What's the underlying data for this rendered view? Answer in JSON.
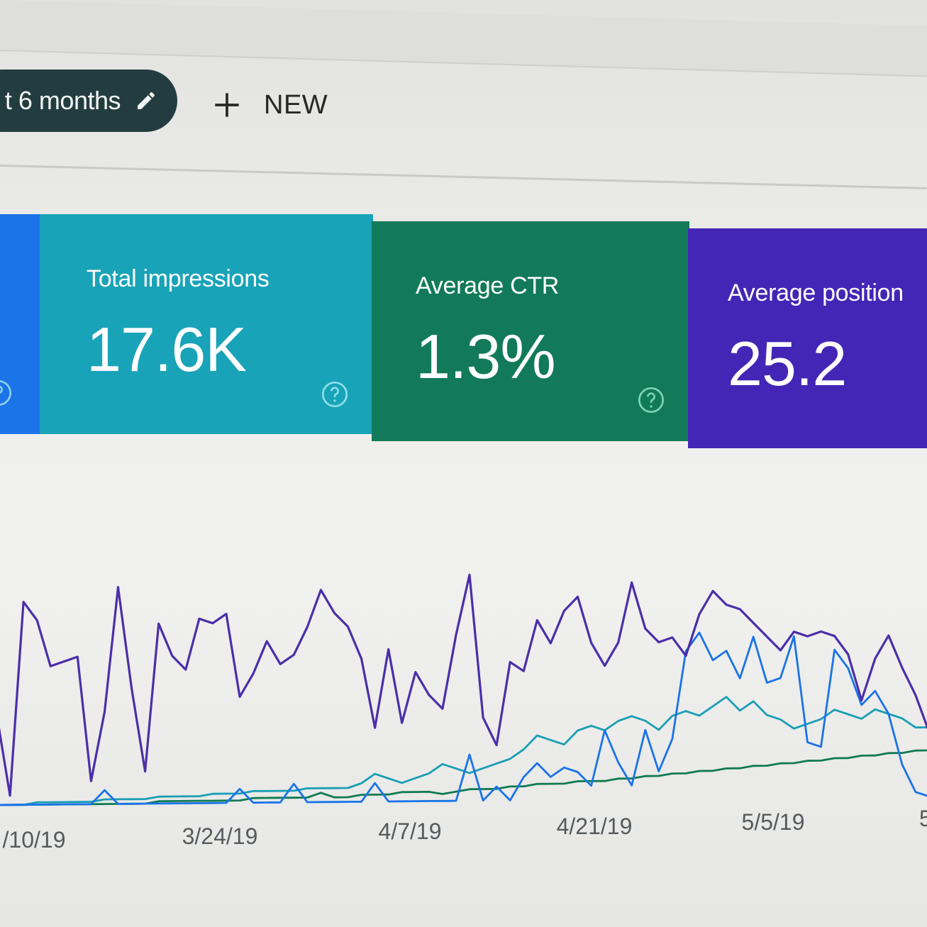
{
  "toolbar": {
    "date_range_label": "t 6 months",
    "new_label": "NEW"
  },
  "metrics": {
    "impressions": {
      "label": "Total impressions",
      "value": "17.6K"
    },
    "ctr": {
      "label": "Average CTR",
      "value": "1.3%"
    },
    "position": {
      "label": "Average position",
      "value": "25.2"
    }
  },
  "icons": {
    "edit": "pencil-icon",
    "add": "plus-icon",
    "help": "help-circle-icon"
  },
  "colors": {
    "clicks": "#1b74e8",
    "impressions": "#19a3b8",
    "ctr": "#127a58",
    "position": "#4326b6"
  },
  "chart_data": {
    "type": "line",
    "x_tick_labels": [
      "/10/19",
      "3/24/19",
      "4/7/19",
      "4/21/19",
      "5/5/19",
      "5"
    ],
    "series": [
      {
        "color": "#4a2fa8",
        "values": [
          40,
          4,
          88,
          80,
          60,
          62,
          64,
          10,
          40,
          94,
          50,
          14,
          78,
          64,
          58,
          80,
          78,
          82,
          46,
          56,
          70,
          60,
          64,
          76,
          92,
          82,
          76,
          62,
          32,
          66,
          34,
          56,
          46,
          40,
          72,
          98,
          36,
          24,
          60,
          56,
          78,
          68,
          82,
          88,
          68,
          58,
          68,
          94,
          74,
          68,
          70,
          62,
          80,
          90,
          84,
          82,
          76,
          70,
          64,
          72,
          70,
          72,
          70,
          62,
          42,
          60,
          70,
          56,
          44,
          28
        ]
      },
      {
        "color": "#1a73e8",
        "values": [
          0,
          0,
          0,
          0,
          0,
          0,
          0,
          0,
          6,
          0,
          0,
          0,
          0,
          0,
          0,
          0,
          0,
          0,
          6,
          0,
          0,
          0,
          8,
          0,
          0,
          0,
          0,
          0,
          8,
          0,
          0,
          0,
          0,
          0,
          0,
          20,
          0,
          6,
          0,
          10,
          16,
          10,
          14,
          12,
          6,
          30,
          16,
          6,
          30,
          12,
          26,
          64,
          72,
          60,
          64,
          52,
          70,
          50,
          52,
          70,
          24,
          22,
          64,
          56,
          40,
          46,
          36,
          14,
          2,
          0
        ]
      },
      {
        "color": "#1a9eb4",
        "values": [
          0,
          0,
          0,
          1,
          1,
          1,
          1,
          1,
          2,
          2,
          2,
          2,
          3,
          3,
          3,
          3,
          4,
          4,
          4,
          5,
          5,
          5,
          5,
          6,
          6,
          6,
          6,
          8,
          12,
          10,
          8,
          10,
          12,
          16,
          14,
          12,
          14,
          16,
          18,
          22,
          28,
          26,
          24,
          30,
          32,
          30,
          34,
          36,
          34,
          30,
          36,
          38,
          36,
          40,
          44,
          38,
          42,
          36,
          34,
          30,
          32,
          34,
          38,
          36,
          34,
          38,
          36,
          34,
          30,
          30
        ]
      },
      {
        "color": "#0f7a52",
        "values": [
          0,
          0,
          0,
          0,
          0,
          0,
          0,
          0,
          0,
          0,
          0,
          0,
          1,
          1,
          1,
          1,
          1,
          1,
          1,
          2,
          2,
          2,
          2,
          2,
          4,
          2,
          2,
          3,
          3,
          3,
          4,
          4,
          4,
          3,
          4,
          5,
          5,
          5,
          6,
          6,
          7,
          7,
          7,
          8,
          8,
          8,
          9,
          9,
          10,
          10,
          11,
          11,
          12,
          12,
          13,
          13,
          14,
          14,
          15,
          15,
          16,
          16,
          17,
          17,
          18,
          18,
          19,
          19,
          20,
          20
        ]
      }
    ]
  }
}
